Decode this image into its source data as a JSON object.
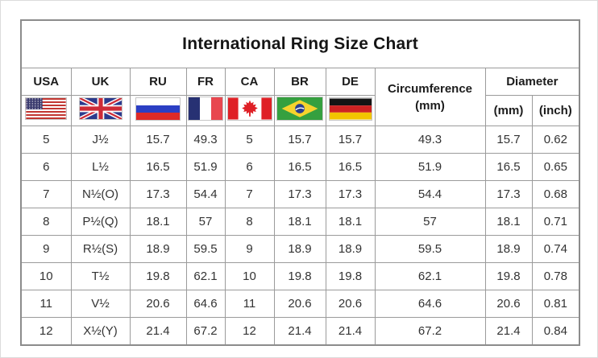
{
  "title": "International Ring Size Chart",
  "table": {
    "column_keys": [
      "usa",
      "uk",
      "ru",
      "fr",
      "ca",
      "br",
      "de",
      "circumference_mm",
      "diameter_mm",
      "diameter_inch"
    ],
    "country_columns": [
      {
        "label": "USA",
        "flag": "usa-flag"
      },
      {
        "label": "UK",
        "flag": "uk-flag"
      },
      {
        "label": "RU",
        "flag": "russia-flag"
      },
      {
        "label": "FR",
        "flag": "france-flag"
      },
      {
        "label": "CA",
        "flag": "canada-flag"
      },
      {
        "label": "BR",
        "flag": "brazil-flag"
      },
      {
        "label": "DE",
        "flag": "germany-flag"
      }
    ],
    "circumference_header": "Circumference",
    "circumference_unit": "(mm)",
    "diameter_header": "Diameter",
    "diameter_subheaders": [
      "(mm)",
      "(inch)"
    ]
  },
  "chart_data": {
    "type": "table",
    "title": "International Ring Size Chart",
    "columns": [
      "USA",
      "UK",
      "RU",
      "FR",
      "CA",
      "BR",
      "DE",
      "Circumference (mm)",
      "Diameter (mm)",
      "Diameter (inch)"
    ],
    "rows": [
      [
        "5",
        "J½",
        "15.7",
        "49.3",
        "5",
        "15.7",
        "15.7",
        "49.3",
        "15.7",
        "0.62"
      ],
      [
        "6",
        "L½",
        "16.5",
        "51.9",
        "6",
        "16.5",
        "16.5",
        "51.9",
        "16.5",
        "0.65"
      ],
      [
        "7",
        "N½(O)",
        "17.3",
        "54.4",
        "7",
        "17.3",
        "17.3",
        "54.4",
        "17.3",
        "0.68"
      ],
      [
        "8",
        "P½(Q)",
        "18.1",
        "57",
        "8",
        "18.1",
        "18.1",
        "57",
        "18.1",
        "0.71"
      ],
      [
        "9",
        "R½(S)",
        "18.9",
        "59.5",
        "9",
        "18.9",
        "18.9",
        "59.5",
        "18.9",
        "0.74"
      ],
      [
        "10",
        "T½",
        "19.8",
        "62.1",
        "10",
        "19.8",
        "19.8",
        "62.1",
        "19.8",
        "0.78"
      ],
      [
        "11",
        "V½",
        "20.6",
        "64.6",
        "11",
        "20.6",
        "20.6",
        "64.6",
        "20.6",
        "0.81"
      ],
      [
        "12",
        "X½(Y)",
        "21.4",
        "67.2",
        "12",
        "21.4",
        "21.4",
        "67.2",
        "21.4",
        "0.84"
      ]
    ]
  },
  "colors": {
    "grid_border": "#9b9b9b",
    "outer_border": "#8c8c8c",
    "text": "#333333",
    "header_text": "#1c1c1c"
  }
}
